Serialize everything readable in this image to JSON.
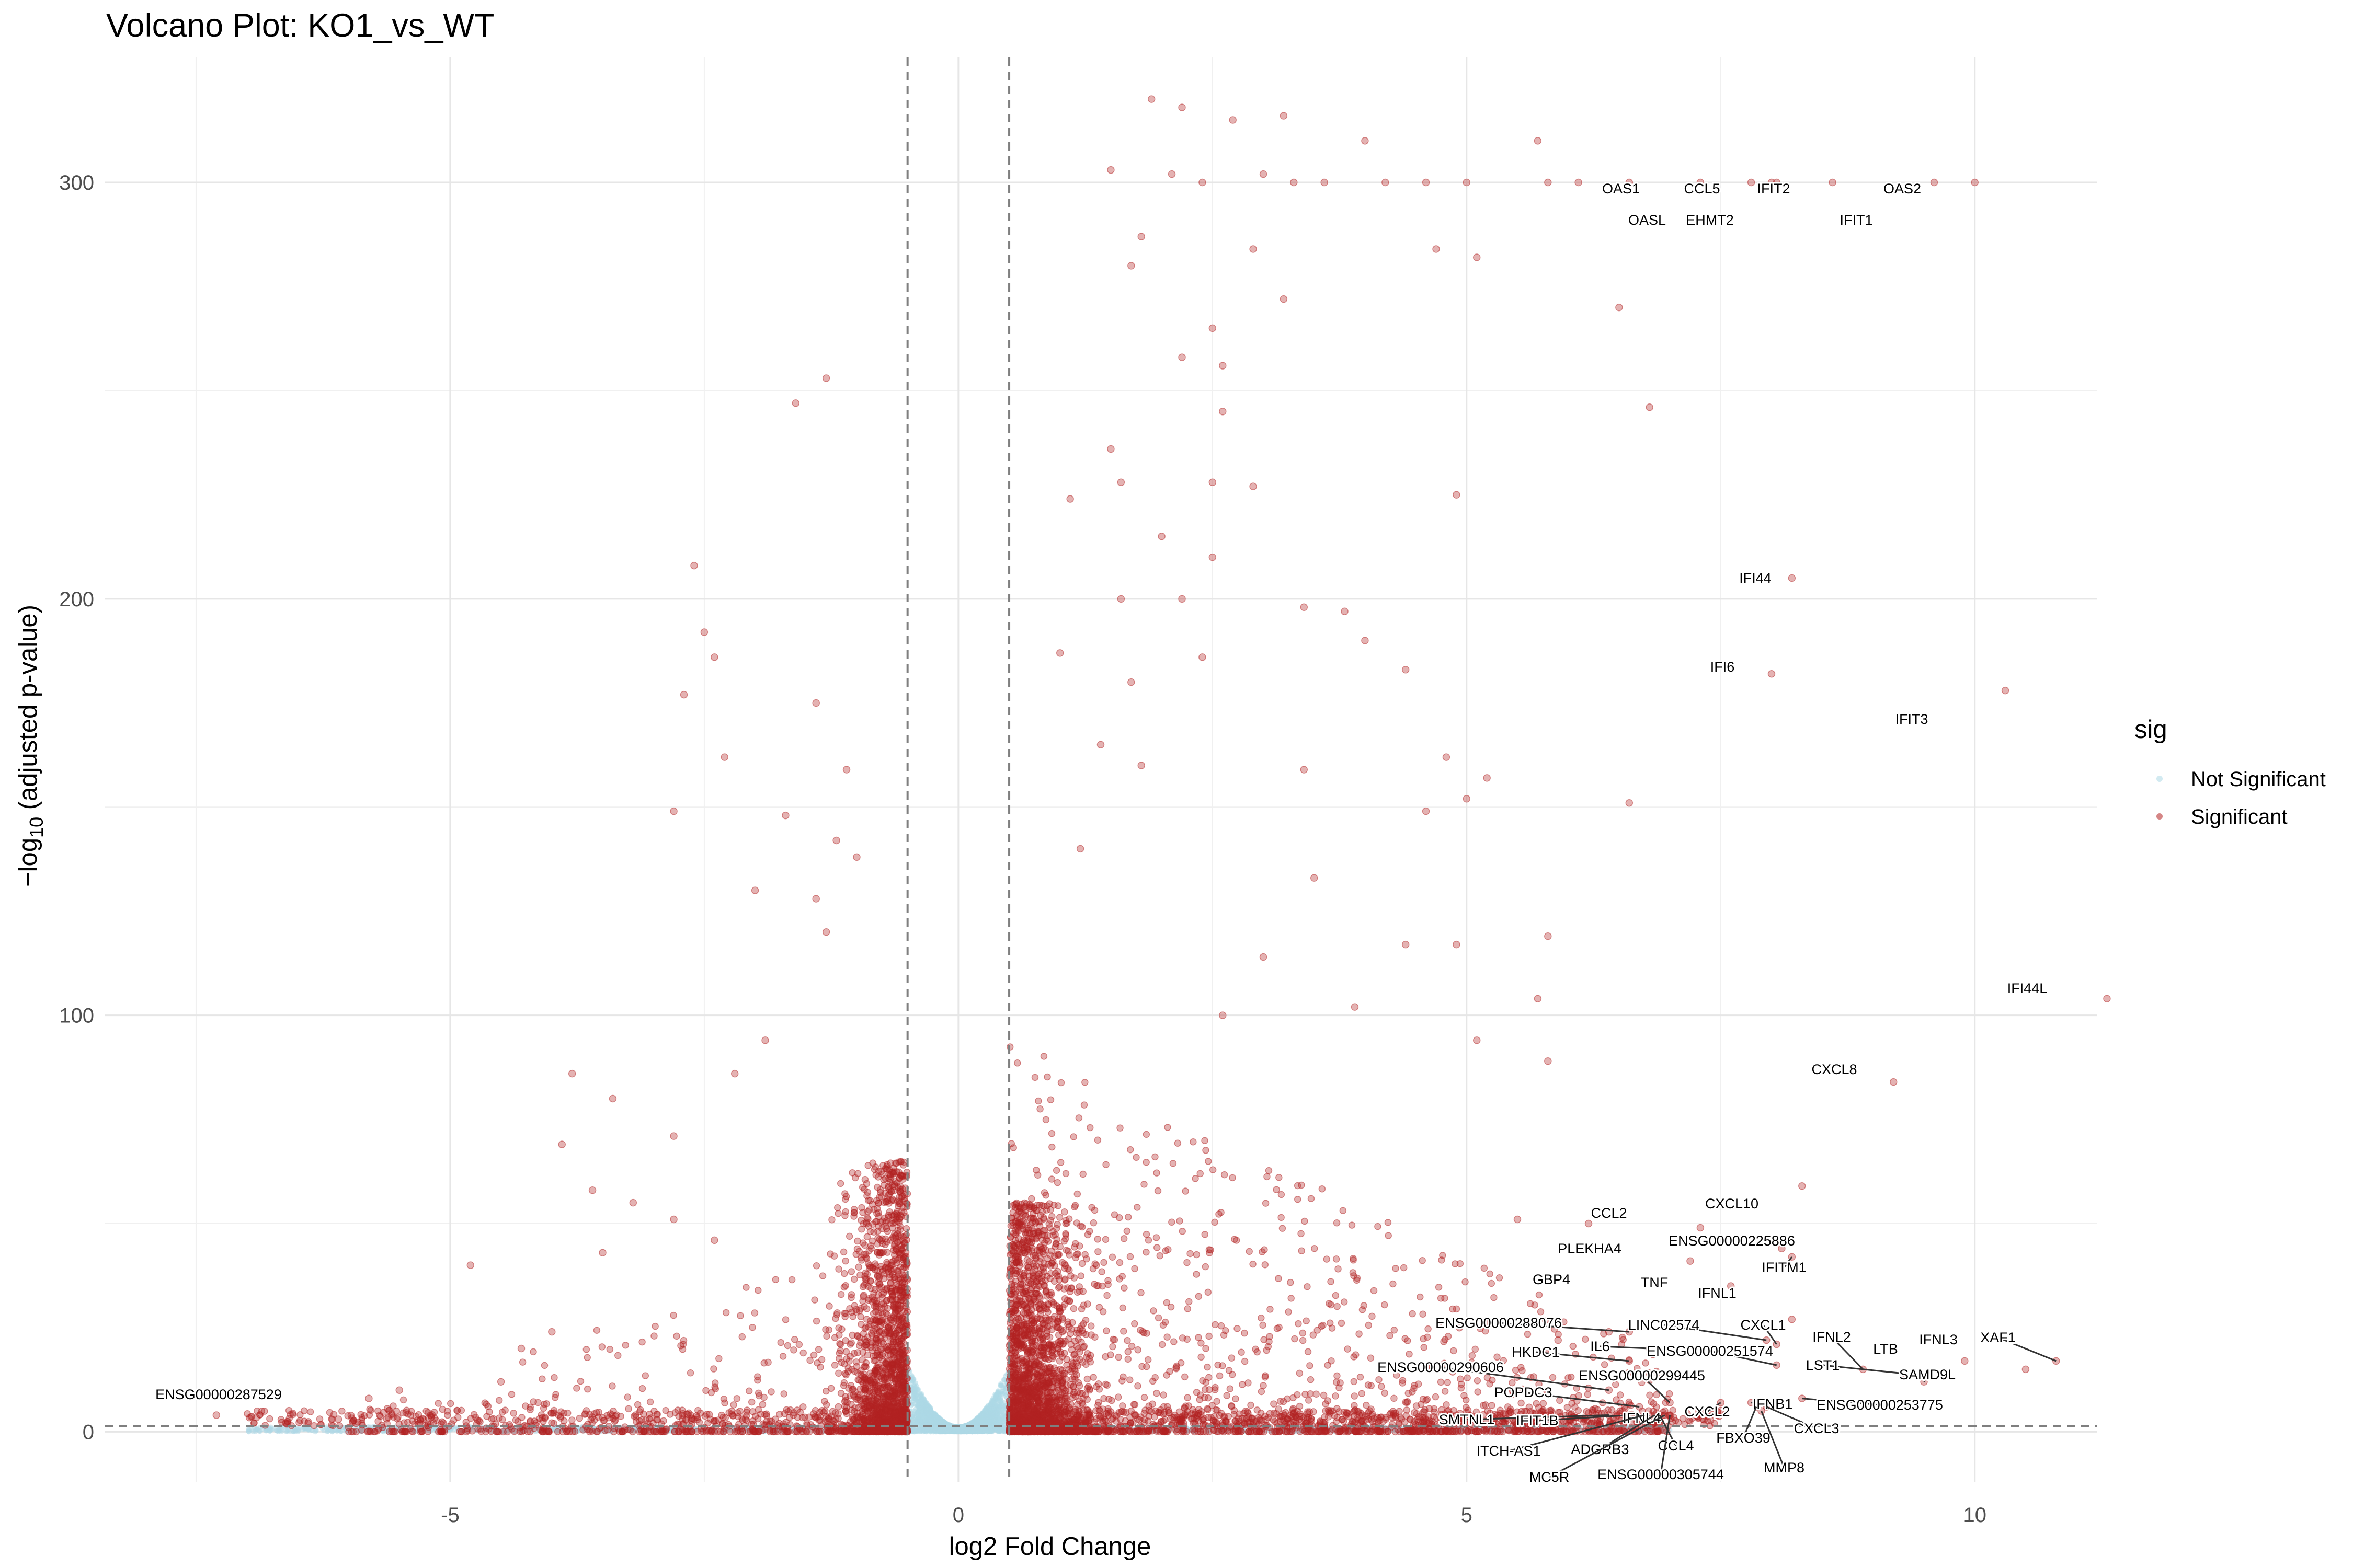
{
  "chart_data": {
    "type": "scatter",
    "title": "Volcano Plot: KO1_vs_WT",
    "xlabel": "log2 Fold Change",
    "ylabel_prefix": "−log",
    "ylabel_sub": "10",
    "ylabel_suffix": " (adjusted p-value)",
    "xlim": [
      -8.4,
      11.2
    ],
    "ylim": [
      -12,
      330
    ],
    "x_ticks": [
      -5,
      0,
      5,
      10
    ],
    "x_tick_labels": [
      "-5",
      "0",
      "5",
      "10"
    ],
    "y_ticks": [
      0,
      100,
      200,
      300
    ],
    "y_tick_labels": [
      "0",
      "100",
      "200",
      "300"
    ],
    "vlines": [
      -0.5,
      0.5
    ],
    "hline": 1.3,
    "grid": true,
    "legend": {
      "title": "sig",
      "position": "right",
      "entries": [
        {
          "label": "Not Significant",
          "color": "#add8e6"
        },
        {
          "label": "Significant",
          "color": "#b22222"
        }
      ]
    },
    "colors": {
      "not_significant": "#add8e6",
      "significant": "#b22222"
    },
    "labeled_genes": [
      {
        "label": "OAS1",
        "x": 7.3,
        "y": 300
      },
      {
        "label": "OASL",
        "x": 7.8,
        "y": 300
      },
      {
        "label": "CCL5",
        "x": 8.0,
        "y": 300
      },
      {
        "label": "EHMT2",
        "x": 8.05,
        "y": 300
      },
      {
        "label": "IFIT2",
        "x": 8.6,
        "y": 300
      },
      {
        "label": "IFIT1",
        "x": 9.6,
        "y": 300
      },
      {
        "label": "OAS2",
        "x": 10.0,
        "y": 300
      },
      {
        "label": "IFI44",
        "x": 8.2,
        "y": 205
      },
      {
        "label": "IFI6",
        "x": 8.0,
        "y": 182
      },
      {
        "label": "IFIT3",
        "x": 10.3,
        "y": 178
      },
      {
        "label": "IFI44L",
        "x": 11.3,
        "y": 104
      },
      {
        "label": "CXCL8",
        "x": 9.2,
        "y": 84
      },
      {
        "label": "CXCL10",
        "x": 8.3,
        "y": 59
      },
      {
        "label": "CCL2",
        "x": 7.3,
        "y": 49
      },
      {
        "label": "ENSG00000225886",
        "x": 8.1,
        "y": 44
      },
      {
        "label": "PLEKHA4",
        "x": 7.2,
        "y": 41
      },
      {
        "label": "IFITM1",
        "x": 8.2,
        "y": 42
      },
      {
        "label": "GBP4",
        "x": 6.9,
        "y": 36
      },
      {
        "label": "TNF",
        "x": 7.6,
        "y": 35
      },
      {
        "label": "IFNL1",
        "x": 8.2,
        "y": 27
      },
      {
        "label": "ENSG00000288076",
        "x": 6.6,
        "y": 24
      },
      {
        "label": "LINC02574",
        "x": 7.95,
        "y": 22
      },
      {
        "label": "CXCL1",
        "x": 8.05,
        "y": 21
      },
      {
        "label": "IL6",
        "x": 6.8,
        "y": 20
      },
      {
        "label": "IFNL2",
        "x": 8.9,
        "y": 15
      },
      {
        "label": "ENSG00000251574",
        "x": 8.05,
        "y": 16
      },
      {
        "label": "LTB",
        "x": 9.9,
        "y": 17
      },
      {
        "label": "IFNL3",
        "x": 10.5,
        "y": 15
      },
      {
        "label": "XAF1",
        "x": 10.8,
        "y": 17
      },
      {
        "label": "HKDC1",
        "x": 6.6,
        "y": 17
      },
      {
        "label": "LST1",
        "x": 9.3,
        "y": 14
      },
      {
        "label": "SAMD9L",
        "x": 9.5,
        "y": 12
      },
      {
        "label": "ENSG00000290606",
        "x": 6.4,
        "y": 10
      },
      {
        "label": "ENSG00000299445",
        "x": 7.0,
        "y": 7
      },
      {
        "label": "POPDC3",
        "x": 6.7,
        "y": 6
      },
      {
        "label": "IFNB1",
        "x": 7.8,
        "y": 7
      },
      {
        "label": "ENSG00000253775",
        "x": 8.3,
        "y": 8
      },
      {
        "label": "CXCL2",
        "x": 7.5,
        "y": 7
      },
      {
        "label": "SMTNL1",
        "x": 6.4,
        "y": 4
      },
      {
        "label": "IFIT1B",
        "x": 6.6,
        "y": 4
      },
      {
        "label": "IFNL4",
        "x": 6.8,
        "y": 4
      },
      {
        "label": "FBXO39",
        "x": 7.85,
        "y": 6
      },
      {
        "label": "CXCL3",
        "x": 7.95,
        "y": 6
      },
      {
        "label": "ITCH-AS1",
        "x": 6.75,
        "y": 4
      },
      {
        "label": "ADGRB3",
        "x": 6.85,
        "y": 4
      },
      {
        "label": "CCL4",
        "x": 6.9,
        "y": 4
      },
      {
        "label": "MMP8",
        "x": 7.9,
        "y": 5
      },
      {
        "label": "MC5R",
        "x": 6.95,
        "y": 4
      },
      {
        "label": "ENSG00000305744",
        "x": 7.0,
        "y": 4
      },
      {
        "label": "ENSG00000287529",
        "x": -7.3,
        "y": 4
      }
    ],
    "highlight_points": [
      {
        "x": 2.7,
        "y": 315
      },
      {
        "x": 1.9,
        "y": 320
      },
      {
        "x": 2.2,
        "y": 318
      },
      {
        "x": 3.2,
        "y": 316
      },
      {
        "x": 5.7,
        "y": 310
      },
      {
        "x": 4.0,
        "y": 310
      },
      {
        "x": 1.5,
        "y": 303
      },
      {
        "x": 2.1,
        "y": 302
      },
      {
        "x": 3.0,
        "y": 302
      },
      {
        "x": 2.4,
        "y": 300
      },
      {
        "x": 3.3,
        "y": 300
      },
      {
        "x": 3.6,
        "y": 300
      },
      {
        "x": 4.2,
        "y": 300
      },
      {
        "x": 4.6,
        "y": 300
      },
      {
        "x": 5.0,
        "y": 300
      },
      {
        "x": 5.8,
        "y": 300
      },
      {
        "x": 6.1,
        "y": 300
      },
      {
        "x": 6.6,
        "y": 300
      },
      {
        "x": 1.8,
        "y": 287
      },
      {
        "x": 2.9,
        "y": 284
      },
      {
        "x": 4.7,
        "y": 284
      },
      {
        "x": 5.1,
        "y": 282
      },
      {
        "x": 1.7,
        "y": 280
      },
      {
        "x": 3.2,
        "y": 272
      },
      {
        "x": 6.5,
        "y": 270
      },
      {
        "x": 2.5,
        "y": 265
      },
      {
        "x": 2.2,
        "y": 258
      },
      {
        "x": 2.6,
        "y": 256
      },
      {
        "x": -1.3,
        "y": 253
      },
      {
        "x": -1.6,
        "y": 247
      },
      {
        "x": 2.6,
        "y": 245
      },
      {
        "x": 6.8,
        "y": 246
      },
      {
        "x": 1.5,
        "y": 236
      },
      {
        "x": 1.6,
        "y": 228
      },
      {
        "x": 2.5,
        "y": 228
      },
      {
        "x": 2.9,
        "y": 227
      },
      {
        "x": 4.9,
        "y": 225
      },
      {
        "x": 1.1,
        "y": 224
      },
      {
        "x": 2.0,
        "y": 215
      },
      {
        "x": 2.5,
        "y": 210
      },
      {
        "x": -2.6,
        "y": 208
      },
      {
        "x": 1.6,
        "y": 200
      },
      {
        "x": 2.2,
        "y": 200
      },
      {
        "x": 3.4,
        "y": 198
      },
      {
        "x": 3.8,
        "y": 197
      },
      {
        "x": -2.5,
        "y": 192
      },
      {
        "x": 4.0,
        "y": 190
      },
      {
        "x": 1.0,
        "y": 187
      },
      {
        "x": -2.4,
        "y": 186
      },
      {
        "x": 2.4,
        "y": 186
      },
      {
        "x": 4.4,
        "y": 183
      },
      {
        "x": -2.7,
        "y": 177
      },
      {
        "x": 1.7,
        "y": 180
      },
      {
        "x": -1.4,
        "y": 175
      },
      {
        "x": 1.4,
        "y": 165
      },
      {
        "x": -2.3,
        "y": 162
      },
      {
        "x": 4.8,
        "y": 162
      },
      {
        "x": 1.8,
        "y": 160
      },
      {
        "x": 3.4,
        "y": 159
      },
      {
        "x": 5.2,
        "y": 157
      },
      {
        "x": -1.1,
        "y": 159
      },
      {
        "x": -2.8,
        "y": 149
      },
      {
        "x": -1.7,
        "y": 148
      },
      {
        "x": 6.6,
        "y": 151
      },
      {
        "x": 4.6,
        "y": 149
      },
      {
        "x": 5.0,
        "y": 152
      },
      {
        "x": -1.2,
        "y": 142
      },
      {
        "x": -1.0,
        "y": 138
      },
      {
        "x": 1.2,
        "y": 140
      },
      {
        "x": -2.0,
        "y": 130
      },
      {
        "x": 3.5,
        "y": 133
      },
      {
        "x": -1.4,
        "y": 128
      },
      {
        "x": 5.8,
        "y": 119
      },
      {
        "x": -1.3,
        "y": 120
      },
      {
        "x": 3.0,
        "y": 114
      },
      {
        "x": 4.4,
        "y": 117
      },
      {
        "x": 4.9,
        "y": 117
      },
      {
        "x": 5.7,
        "y": 104
      },
      {
        "x": 2.6,
        "y": 100
      },
      {
        "x": 3.9,
        "y": 102
      },
      {
        "x": -1.9,
        "y": 94
      },
      {
        "x": 5.1,
        "y": 94
      },
      {
        "x": -3.8,
        "y": 86
      },
      {
        "x": -2.2,
        "y": 86
      },
      {
        "x": 5.8,
        "y": 89
      },
      {
        "x": -3.4,
        "y": 80
      },
      {
        "x": -3.9,
        "y": 69
      },
      {
        "x": -2.8,
        "y": 71
      },
      {
        "x": -3.6,
        "y": 58
      },
      {
        "x": -3.2,
        "y": 55
      },
      {
        "x": -2.8,
        "y": 51
      },
      {
        "x": -3.5,
        "y": 43
      },
      {
        "x": -4.8,
        "y": 40
      },
      {
        "x": 6.2,
        "y": 50
      },
      {
        "x": 5.5,
        "y": 51
      },
      {
        "x": -2.4,
        "y": 46
      },
      {
        "x": 6.4,
        "y": 24
      },
      {
        "x": 5.2,
        "y": 26
      },
      {
        "x": 5.9,
        "y": 22
      },
      {
        "x": -4.0,
        "y": 24
      },
      {
        "x": -4.3,
        "y": 20
      },
      {
        "x": -5.5,
        "y": 10
      },
      {
        "x": -5.8,
        "y": 8
      },
      {
        "x": -6.1,
        "y": 3
      },
      {
        "x": -6.6,
        "y": 2
      },
      {
        "x": -4.5,
        "y": 12
      }
    ]
  }
}
